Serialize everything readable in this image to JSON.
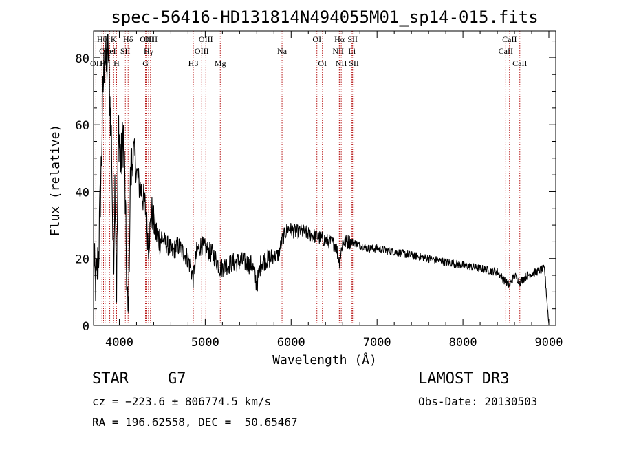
{
  "chart_data": {
    "type": "line",
    "title": "spec-56416-HD131814N494055M01_sp14-015.fits",
    "xlabel": "Wavelength (Å)",
    "ylabel": "Flux (relative)",
    "xlim": [
      3700,
      9080
    ],
    "ylim": [
      0,
      88
    ],
    "xticks": [
      4000,
      5000,
      6000,
      7000,
      8000,
      9000
    ],
    "yticks": [
      0,
      20,
      40,
      60,
      80
    ],
    "tick_labels_x": [
      "4000",
      "5000",
      "6000",
      "7000",
      "8000",
      "9000"
    ],
    "tick_labels_y": [
      "0",
      "20",
      "40",
      "60",
      "80"
    ],
    "line_colors": {
      "spectrum": "#000000",
      "markers": "#b00000"
    },
    "spectral_lines": [
      {
        "label": "OII",
        "wavelength": 3727,
        "row": 3
      },
      {
        "label": "Hθ",
        "wavelength": 3798,
        "row": 1
      },
      {
        "label": "OI",
        "wavelength": 3816,
        "row": 2
      },
      {
        "label": "Hη",
        "wavelength": 3835,
        "row": 3
      },
      {
        "label": "HeI",
        "wavelength": 3889,
        "row": 2
      },
      {
        "label": "K",
        "wavelength": 3934,
        "row": 1
      },
      {
        "label": "H",
        "wavelength": 3968,
        "row": 3
      },
      {
        "label": "SII",
        "wavelength": 4070,
        "row": 2
      },
      {
        "label": "Hδ",
        "wavelength": 4102,
        "row": 1
      },
      {
        "label": "G",
        "wavelength": 4305,
        "row": 3
      },
      {
        "label": "OIII",
        "wavelength": 4321,
        "row": 1
      },
      {
        "label": "Hγ",
        "wavelength": 4340,
        "row": 2
      },
      {
        "label": "OIII",
        "wavelength": 4363,
        "row": 1
      },
      {
        "label": "Hβ",
        "wavelength": 4861,
        "row": 3
      },
      {
        "label": "OIII",
        "wavelength": 4959,
        "row": 2
      },
      {
        "label": "OIII",
        "wavelength": 5007,
        "row": 1
      },
      {
        "label": "Mg",
        "wavelength": 5175,
        "row": 3
      },
      {
        "label": "Na",
        "wavelength": 5894,
        "row": 2
      },
      {
        "label": "OI",
        "wavelength": 6300,
        "row": 1
      },
      {
        "label": "OI",
        "wavelength": 6364,
        "row": 3
      },
      {
        "label": "NII",
        "wavelength": 6548,
        "row": 2
      },
      {
        "label": "Hα",
        "wavelength": 6563,
        "row": 1
      },
      {
        "label": "NII",
        "wavelength": 6583,
        "row": 3
      },
      {
        "label": "Li",
        "wavelength": 6708,
        "row": 2
      },
      {
        "label": "SII",
        "wavelength": 6716,
        "row": 1
      },
      {
        "label": "SII",
        "wavelength": 6731,
        "row": 3
      },
      {
        "label": "CaII",
        "wavelength": 8498,
        "row": 2
      },
      {
        "label": "CaII",
        "wavelength": 8542,
        "row": 1
      },
      {
        "label": "CaII",
        "wavelength": 8662,
        "row": 3
      }
    ],
    "spectrum_anchor_points": [
      [
        3700,
        18
      ],
      [
        3730,
        12
      ],
      [
        3760,
        22
      ],
      [
        3790,
        48
      ],
      [
        3810,
        70
      ],
      [
        3830,
        82
      ],
      [
        3850,
        76
      ],
      [
        3870,
        84
      ],
      [
        3890,
        68
      ],
      [
        3910,
        55
      ],
      [
        3930,
        15
      ],
      [
        3950,
        45
      ],
      [
        3968,
        12
      ],
      [
        3990,
        60
      ],
      [
        4020,
        48
      ],
      [
        4050,
        58
      ],
      [
        4070,
        35
      ],
      [
        4090,
        8
      ],
      [
        4102,
        2
      ],
      [
        4130,
        45
      ],
      [
        4170,
        52
      ],
      [
        4200,
        46
      ],
      [
        4230,
        42
      ],
      [
        4260,
        40
      ],
      [
        4300,
        36
      ],
      [
        4340,
        24
      ],
      [
        4380,
        34
      ],
      [
        4420,
        28
      ],
      [
        4460,
        26
      ],
      [
        4500,
        26
      ],
      [
        4560,
        24
      ],
      [
        4620,
        22
      ],
      [
        4680,
        24
      ],
      [
        4740,
        22
      ],
      [
        4800,
        20
      ],
      [
        4861,
        14
      ],
      [
        4900,
        22
      ],
      [
        4950,
        24
      ],
      [
        5000,
        23
      ],
      [
        5100,
        21
      ],
      [
        5175,
        17
      ],
      [
        5250,
        18
      ],
      [
        5350,
        19
      ],
      [
        5450,
        19
      ],
      [
        5550,
        18
      ],
      [
        5600,
        12
      ],
      [
        5650,
        19
      ],
      [
        5750,
        20
      ],
      [
        5850,
        21
      ],
      [
        5900,
        26
      ],
      [
        5960,
        29
      ],
      [
        6050,
        28
      ],
      [
        6150,
        28
      ],
      [
        6250,
        27
      ],
      [
        6350,
        26
      ],
      [
        6450,
        25
      ],
      [
        6520,
        24
      ],
      [
        6563,
        19
      ],
      [
        6600,
        25
      ],
      [
        6700,
        25
      ],
      [
        6800,
        24
      ],
      [
        6900,
        23
      ],
      [
        7000,
        23
      ],
      [
        7200,
        22
      ],
      [
        7400,
        21
      ],
      [
        7600,
        20
      ],
      [
        7800,
        19
      ],
      [
        8000,
        18
      ],
      [
        8200,
        17
      ],
      [
        8400,
        16
      ],
      [
        8498,
        13
      ],
      [
        8542,
        12
      ],
      [
        8600,
        15
      ],
      [
        8662,
        13
      ],
      [
        8750,
        15
      ],
      [
        8850,
        16
      ],
      [
        8950,
        17
      ],
      [
        9000,
        0
      ]
    ]
  },
  "info": {
    "object_type": "STAR",
    "subclass": "G7",
    "survey": "LAMOST DR3",
    "cz": "cz = −223.6 ± 806774.5 km/s",
    "obs_date": "Obs-Date: 20130503",
    "radec": "RA = 196.62558, DEC =  50.65467"
  }
}
